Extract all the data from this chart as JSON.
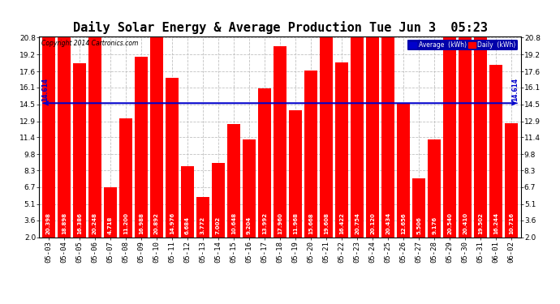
{
  "title": "Daily Solar Energy & Average Production Tue Jun 3  05:23",
  "copyright": "Copyright 2014 Cartronics.com",
  "average_value": 14.614,
  "average_label": "14.614",
  "categories": [
    "05-03",
    "05-04",
    "05-05",
    "05-06",
    "05-07",
    "05-08",
    "05-09",
    "05-10",
    "05-11",
    "05-12",
    "05-13",
    "05-14",
    "05-15",
    "05-16",
    "05-17",
    "05-18",
    "05-19",
    "05-20",
    "05-21",
    "05-22",
    "05-23",
    "05-24",
    "05-25",
    "05-26",
    "05-27",
    "05-28",
    "05-29",
    "05-30",
    "05-31",
    "06-01",
    "06-02"
  ],
  "values": [
    20.398,
    18.898,
    16.386,
    20.248,
    4.718,
    11.2,
    16.988,
    20.892,
    14.976,
    6.684,
    3.772,
    7.002,
    10.648,
    9.204,
    13.992,
    17.96,
    11.968,
    15.668,
    19.608,
    16.422,
    20.754,
    20.12,
    20.434,
    12.656,
    5.506,
    9.176,
    20.54,
    20.41,
    19.502,
    16.244,
    10.716
  ],
  "bar_color": "#ff0000",
  "average_line_color": "#0000cc",
  "background_color": "#ffffff",
  "plot_bg_color": "#ffffff",
  "grid_color": "#bbbbbb",
  "yticks": [
    2.0,
    3.6,
    5.1,
    6.7,
    8.3,
    9.8,
    11.4,
    12.9,
    14.5,
    16.1,
    17.6,
    19.2,
    20.8
  ],
  "ylim_min": 2.0,
  "ylim_max": 20.8,
  "title_fontsize": 11,
  "bar_label_fontsize": 5.0,
  "tick_fontsize": 6.5,
  "legend_avg_color": "#0000cc",
  "legend_daily_color": "#ff0000"
}
